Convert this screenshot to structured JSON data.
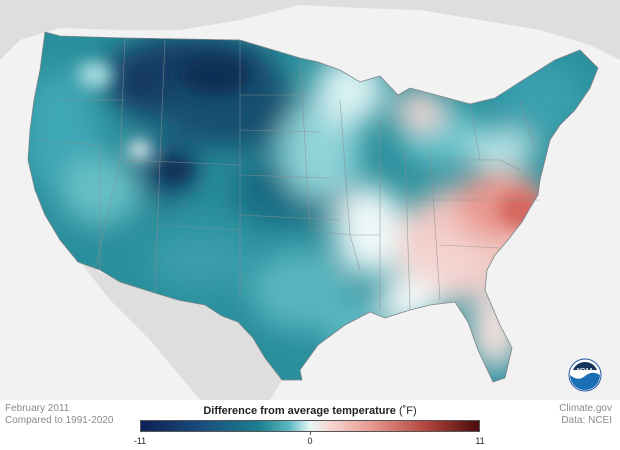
{
  "map": {
    "title": "Difference from average temperature",
    "unit": "(˚F)",
    "period": "February 2011",
    "baseline": "Compared to 1991-2020",
    "credit": "Climate.gov",
    "source": "Data: NCEI",
    "logo_text": "NOAA",
    "legend": {
      "min_label": "-11",
      "mid_label": "0",
      "max_label": "11",
      "min_value": -11,
      "max_value": 11,
      "colors": [
        "#0f1f55",
        "#1b7f8f",
        "#e8f6f6",
        "#e79a92",
        "#4a0c0c"
      ]
    },
    "background_color": "#f2f2f2",
    "land_outside_color": "#dedede",
    "pattern": "cold anomalies across the West, Plains and Northeast; warm anomalies across the Southeast and mid-Atlantic"
  }
}
